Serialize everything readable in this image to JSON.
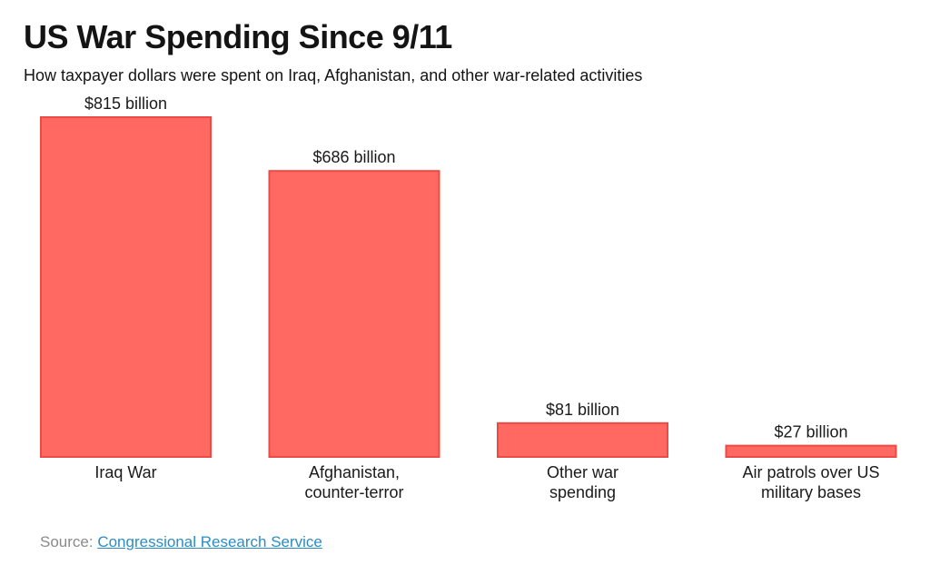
{
  "header": {
    "title": "US War Spending Since 9/11",
    "subtitle": "How taxpayer dollars were spent on Iraq, Afghanistan, and other war-related activities"
  },
  "source": {
    "prefix": "Source:",
    "link_text": "Congressional Research Service"
  },
  "colors": {
    "bar_fill": "#ff6961",
    "bar_stroke": "#ec4a44",
    "text": "#1a1a1a",
    "source_text": "#8a8a8a",
    "link": "#2b8cc4"
  },
  "chart_data": {
    "type": "bar",
    "title": "US War Spending Since 9/11",
    "subtitle": "How taxpayer dollars were spent on Iraq, Afghanistan, and other war-related activities",
    "unit": "billion USD",
    "categories": [
      [
        "Iraq War"
      ],
      [
        "Afghanistan,",
        "counter-terror"
      ],
      [
        "Other war",
        "spending"
      ],
      [
        "Air patrols over US",
        "military bases"
      ]
    ],
    "values": [
      815,
      686,
      81,
      27
    ],
    "data_labels": [
      "$815 billion",
      "$686 billion",
      "$81 billion",
      "$27 billion"
    ],
    "ylim": [
      0,
      815
    ],
    "grid": false,
    "legend": "none"
  }
}
